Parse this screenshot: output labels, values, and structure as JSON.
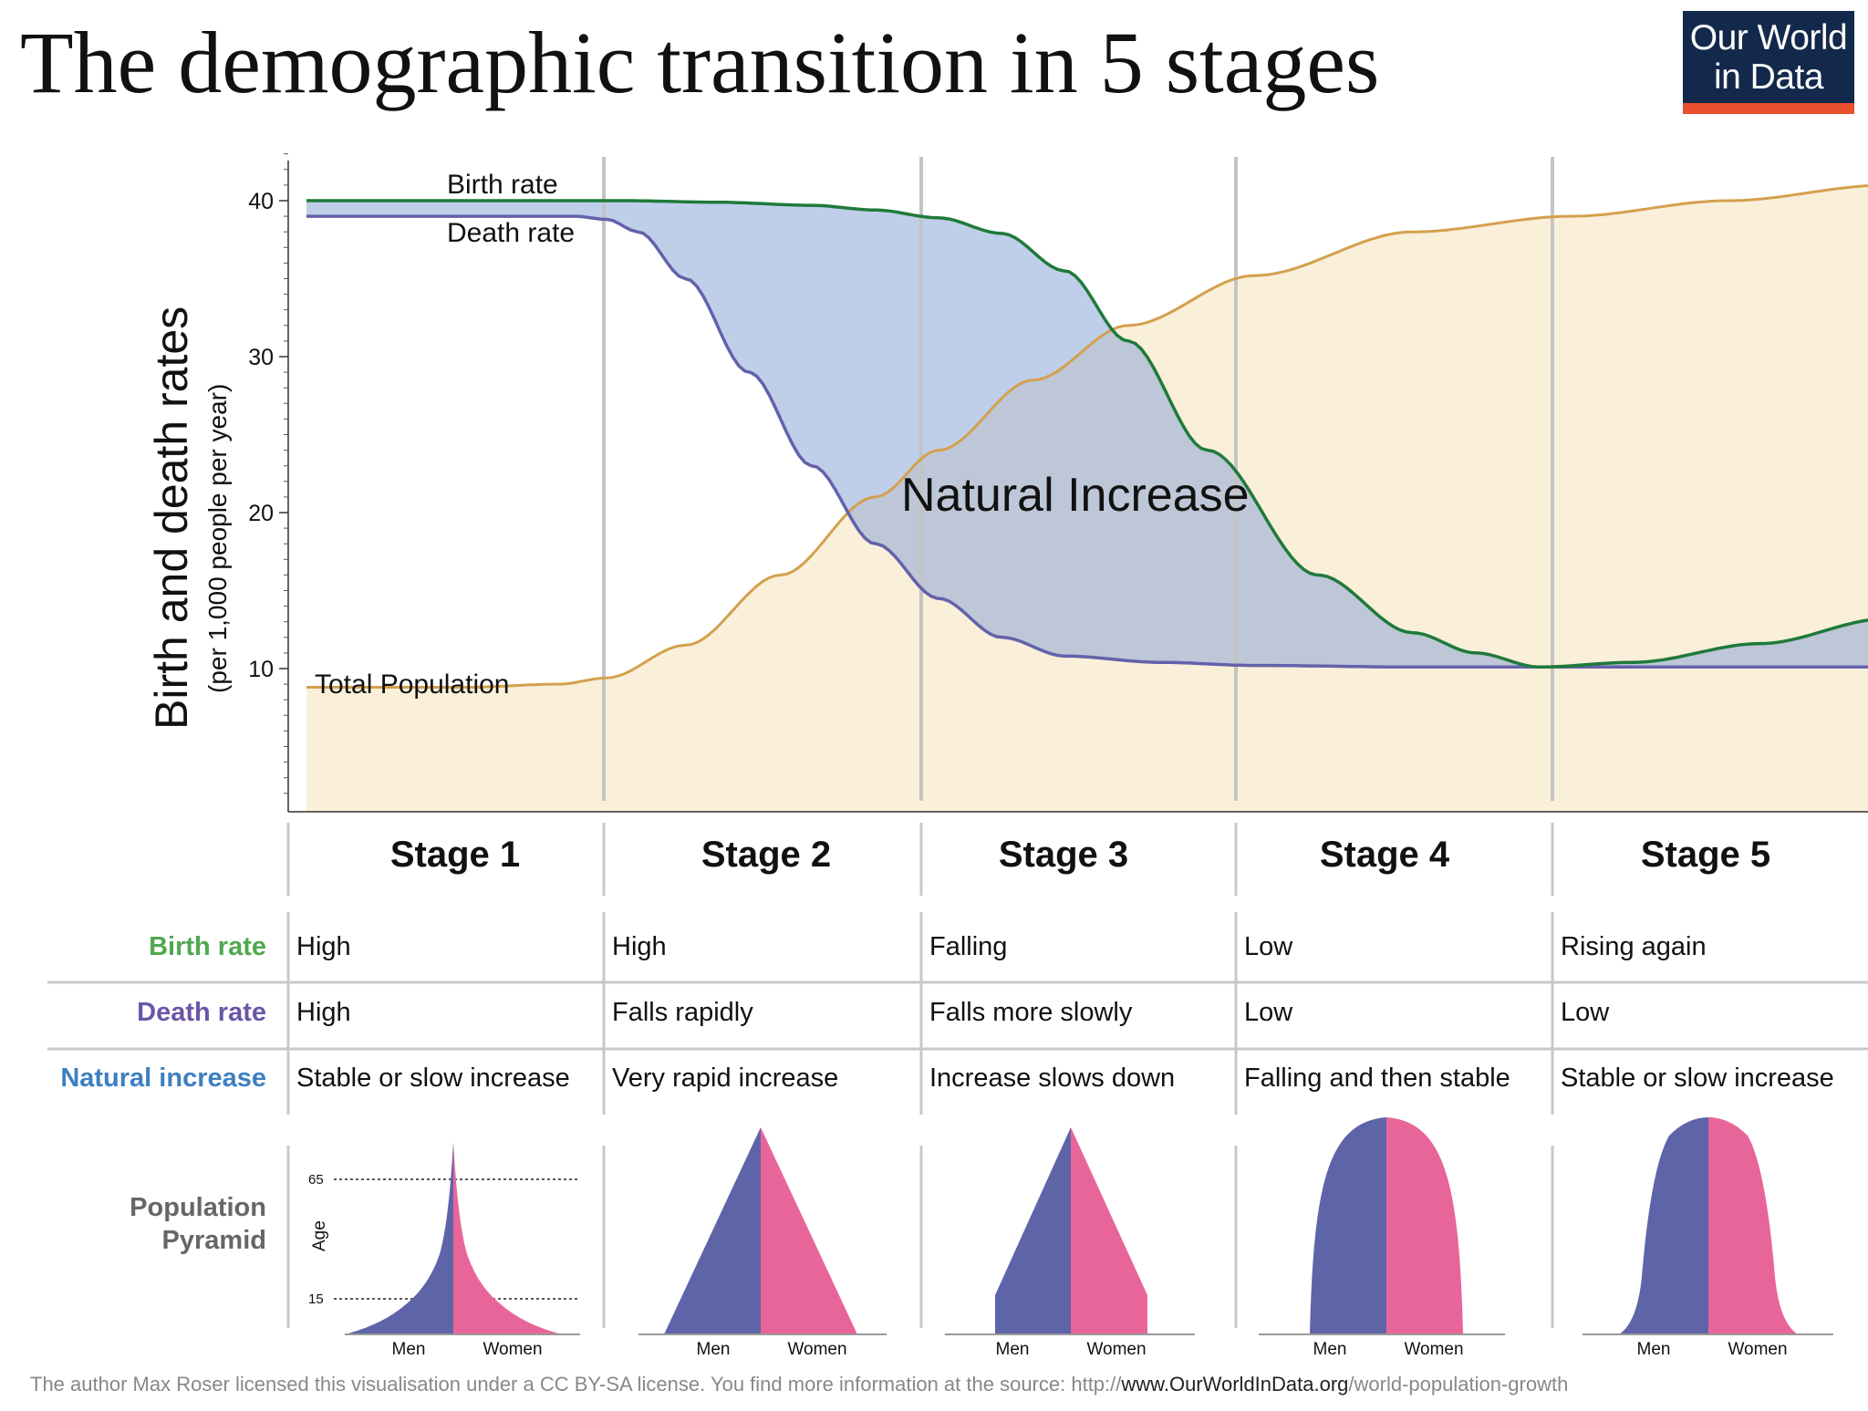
{
  "title": "The demographic transition in 5 stages",
  "logo": {
    "line1": "Our World",
    "line2": "in Data"
  },
  "chart_data": {
    "type": "line",
    "ylabel": "Birth and death rates",
    "ylabel_sub": "(per 1,000 people per year)",
    "ylim": [
      1,
      43
    ],
    "yticks": [
      10,
      20,
      30,
      40
    ],
    "series": [
      {
        "name": "Birth rate",
        "color": "#1f7a3a",
        "x": [
          0,
          0.5,
          0.9,
          1.0,
          1.3,
          1.6,
          1.8,
          2.0,
          2.2,
          2.4,
          2.6,
          2.85,
          3.2,
          3.5,
          3.7,
          3.9,
          4.2,
          4.6,
          5.0
        ],
        "values": [
          40,
          40,
          40,
          40,
          39.9,
          39.7,
          39.4,
          38.9,
          37.9,
          35.5,
          31,
          24,
          16,
          12.3,
          11,
          10.1,
          10.4,
          11.6,
          13.2
        ]
      },
      {
        "name": "Death rate",
        "color": "#6461ab",
        "x": [
          0,
          0.5,
          0.85,
          0.95,
          1.05,
          1.2,
          1.4,
          1.6,
          1.8,
          2.0,
          2.2,
          2.4,
          2.7,
          3.0,
          3.5,
          4.0,
          4.5,
          5.0
        ],
        "values": [
          39,
          39,
          39,
          38.8,
          38,
          35,
          29,
          23,
          18,
          14.5,
          12,
          10.8,
          10.4,
          10.2,
          10.1,
          10.1,
          10.1,
          10.1
        ]
      },
      {
        "name": "Total Population",
        "color": "#d4a04d",
        "x": [
          0,
          0.5,
          0.8,
          0.95,
          1.2,
          1.5,
          1.8,
          2.0,
          2.3,
          2.6,
          3.0,
          3.5,
          4.0,
          4.5,
          5.0
        ],
        "values": [
          8.8,
          8.8,
          9,
          9.4,
          11.5,
          16,
          21,
          24,
          28.5,
          32,
          35.2,
          38,
          39,
          40,
          41
        ]
      }
    ],
    "area_label": "Natural Increase",
    "stages": [
      "Stage 1",
      "Stage 2",
      "Stage 3",
      "Stage 4",
      "Stage 5"
    ]
  },
  "table": {
    "rows": [
      {
        "label": "Birth rate",
        "color": "#4fa84f",
        "cells": [
          "High",
          "High",
          "Falling",
          "Low",
          "Rising again"
        ]
      },
      {
        "label": "Death rate",
        "color": "#6a55a8",
        "cells": [
          "High",
          "Falls rapidly",
          "Falls more slowly",
          "Low",
          "Low"
        ]
      },
      {
        "label": "Natural increase",
        "color": "#3e7fc1",
        "cells": [
          "Stable or slow increase",
          "Very rapid increase",
          "Increase slows down",
          "Falling and then stable",
          "Stable or slow increase"
        ]
      }
    ],
    "pyramid_label_1": "Population",
    "pyramid_label_2": "Pyramid"
  },
  "pyramids": {
    "men_label": "Men",
    "women_label": "Women",
    "age_label": "Age",
    "tick_65": "65",
    "tick_15": "15",
    "men_color": "#5e64a8",
    "women_color": "#e8659a"
  },
  "footer": {
    "prefix": "The author Max Roser licensed this visualisation under a CC BY-SA license. You find more information at the source: http://",
    "domain": "www.OurWorldInData.org",
    "path": "/world-population-growth"
  }
}
